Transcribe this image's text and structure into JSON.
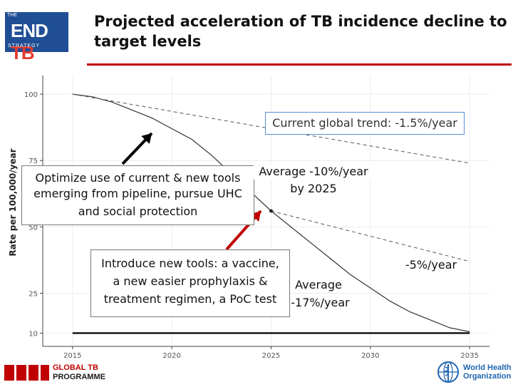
{
  "title": "Projected acceleration of TB incidence decline to target levels",
  "logo_endtb": {
    "top": "THE",
    "main_a": "END",
    "main_b": "TB",
    "bottom": "STRATEGY"
  },
  "logo_global_tb": {
    "line1": "GLOBAL TB",
    "line2": "PROGRAMME"
  },
  "logo_who": {
    "line1": "World Health",
    "line2": "Organization"
  },
  "annotations": {
    "current_trend": "Current global trend: -1.5%/year",
    "optimize": [
      "Optimize use of current & new tools",
      "emerging from pipeline, pursue UHC",
      "and social protection"
    ],
    "avg_10": [
      "Average -10%/year",
      "by 2025"
    ],
    "introduce": [
      "Introduce new tools: a vaccine,",
      "a new easier prophylaxis &",
      "treatment regimen, a PoC test"
    ],
    "avg_17": [
      "Average",
      "-17%/year"
    ],
    "five_pct": "-5%/year"
  },
  "colors": {
    "accent": "#c00000",
    "logo_blue": "#1f4e95",
    "who_blue": "#1f64b0",
    "box_border": "#5b8ed6",
    "arrow": "#000000"
  },
  "chart_data": {
    "type": "line",
    "title": "",
    "xlabel": "",
    "ylabel": "Rate per 100,000/year",
    "xlim": [
      2013.5,
      2036
    ],
    "ylim": [
      5,
      107
    ],
    "x_ticks": [
      2015,
      2020,
      2025,
      2030,
      2035
    ],
    "y_ticks": [
      10,
      25,
      50,
      75,
      100
    ],
    "grid": true,
    "series": [
      {
        "style": "solid",
        "points": [
          [
            2015,
            100
          ],
          [
            2016,
            99
          ],
          [
            2017,
            97
          ],
          [
            2018,
            94
          ],
          [
            2019,
            91
          ],
          [
            2020,
            87
          ],
          [
            2021,
            83
          ],
          [
            2022,
            77
          ],
          [
            2023,
            70
          ],
          [
            2024,
            63
          ],
          [
            2025,
            56
          ],
          [
            2026,
            50
          ],
          [
            2027,
            44
          ],
          [
            2028,
            38
          ],
          [
            2029,
            32
          ],
          [
            2030,
            27
          ],
          [
            2031,
            22
          ],
          [
            2032,
            18
          ],
          [
            2033,
            15
          ],
          [
            2034,
            12
          ],
          [
            2035,
            10.5
          ]
        ]
      },
      {
        "style": "dashed",
        "points": [
          [
            2015,
            100
          ],
          [
            2035,
            74
          ]
        ]
      },
      {
        "style": "dashed",
        "points": [
          [
            2025,
            56
          ],
          [
            2035,
            37
          ]
        ]
      },
      {
        "style": "flat",
        "points": [
          [
            2015,
            10
          ],
          [
            2035,
            10
          ]
        ]
      }
    ],
    "markers": [
      {
        "x": 2025,
        "y": 56
      }
    ]
  }
}
